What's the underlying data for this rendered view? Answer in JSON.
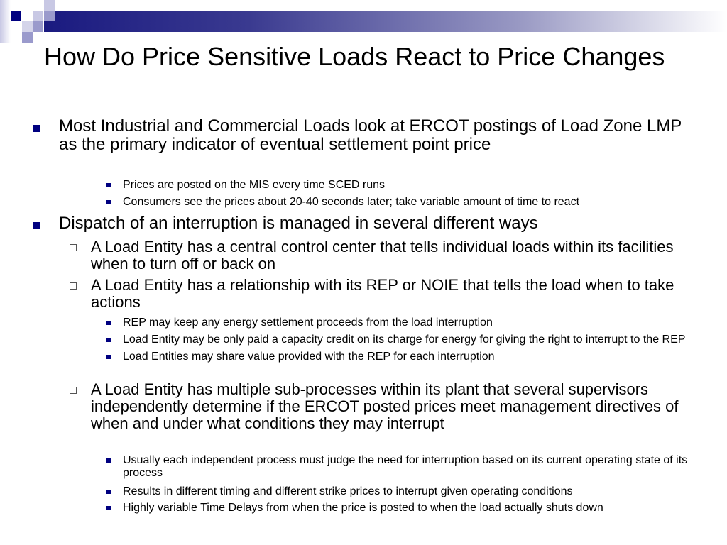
{
  "title": "How Do Price Sensitive Loads React to Price Changes",
  "colors": {
    "accent": "#000080"
  },
  "bullets": [
    {
      "level": 1,
      "text": "Most Industrial and Commercial Loads look at ERCOT postings of Load Zone LMP as the primary indicator of eventual settlement point price"
    },
    {
      "level": 3,
      "text": "Prices are posted on the MIS every time SCED runs"
    },
    {
      "level": 3,
      "text": "Consumers see the prices about 20-40 seconds later; take variable amount of time to react"
    },
    {
      "level": 1,
      "text": "Dispatch of an interruption is managed in several different ways"
    },
    {
      "level": 2,
      "text": "A Load Entity has a central control center that tells individual loads within its facilities when to turn off or back on"
    },
    {
      "level": 2,
      "text": "A Load Entity has a relationship with its REP or NOIE that tells the load when to take actions"
    },
    {
      "level": 3,
      "text": "REP may keep any energy settlement proceeds from the load interruption"
    },
    {
      "level": 3,
      "text": "Load Entity may be only paid a capacity credit on its charge for energy for giving the right to interrupt to the REP"
    },
    {
      "level": 3,
      "text": "Load Entities may share value provided with the REP for each interruption"
    },
    {
      "level": 2,
      "text": "A Load Entity has multiple sub-processes within its plant that several supervisors independently determine if the ERCOT posted prices meet management directives of when and under what conditions they may interrupt"
    },
    {
      "level": 3,
      "text": "Usually each independent process must judge the need for interruption based on its current operating state of its process"
    },
    {
      "level": 3,
      "text": "Results in different timing and different strike prices to interrupt given operating conditions"
    },
    {
      "level": 3,
      "text": "Highly variable Time Delays from when the price is posted to when the load actually shuts down"
    }
  ]
}
